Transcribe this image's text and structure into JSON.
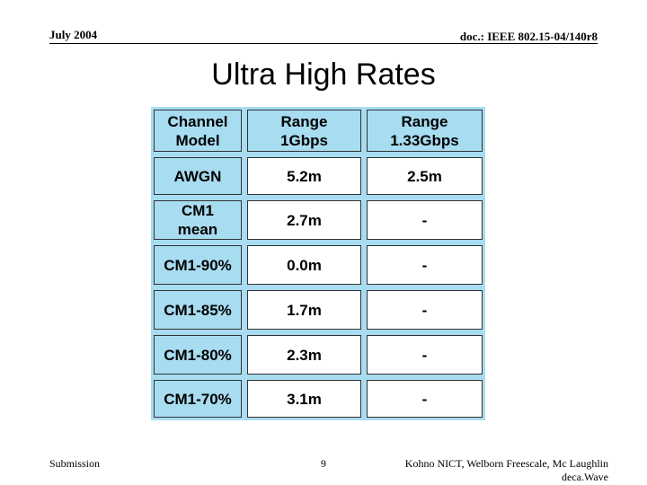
{
  "header": {
    "date": "July 2004",
    "doc": "doc.: IEEE 802.15-04/140r8"
  },
  "title": "Ultra High Rates",
  "table": {
    "header": [
      "Channel\nModel",
      "Range\n1Gbps",
      "Range\n1.33Gbps"
    ],
    "rows": [
      [
        "AWGN",
        "5.2m",
        "2.5m"
      ],
      [
        "CM1\nmean",
        "2.7m",
        "-"
      ],
      [
        "CM1-90%",
        "0.0m",
        "-"
      ],
      [
        "CM1-85%",
        "1.7m",
        "-"
      ],
      [
        "CM1-80%",
        "2.3m",
        "-"
      ],
      [
        "CM1-70%",
        "3.1m",
        "-"
      ]
    ]
  },
  "footer": {
    "left": "Submission",
    "page": "9",
    "right": "Kohno NICT, Welborn Freescale, Mc Laughlin\ndeca.Wave"
  }
}
